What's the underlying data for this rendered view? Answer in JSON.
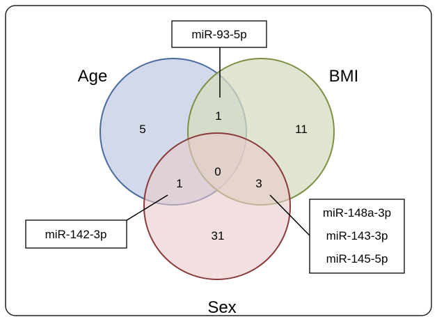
{
  "diagram": {
    "sets": [
      {
        "id": "age",
        "label": "Age",
        "fill": "#c9d2e6",
        "stroke": "#4a6a9e"
      },
      {
        "id": "bmi",
        "label": "BMI",
        "fill": "#d6dcbf",
        "stroke": "#7d8f45"
      },
      {
        "id": "sex",
        "label": "Sex",
        "fill": "#eacaca",
        "stroke": "#8a3a3a"
      }
    ],
    "regions": {
      "age_only": "5",
      "bmi_only": "11",
      "sex_only": "31",
      "age_bmi": "1",
      "age_sex": "1",
      "bmi_sex": "3",
      "all": "0"
    },
    "callouts": {
      "age_bmi": [
        "miR-93-5p"
      ],
      "age_sex": [
        "miR-142-3p"
      ],
      "bmi_sex": [
        "miR-148a-3p",
        "miR-143-3p",
        "miR-145-5p"
      ]
    }
  }
}
